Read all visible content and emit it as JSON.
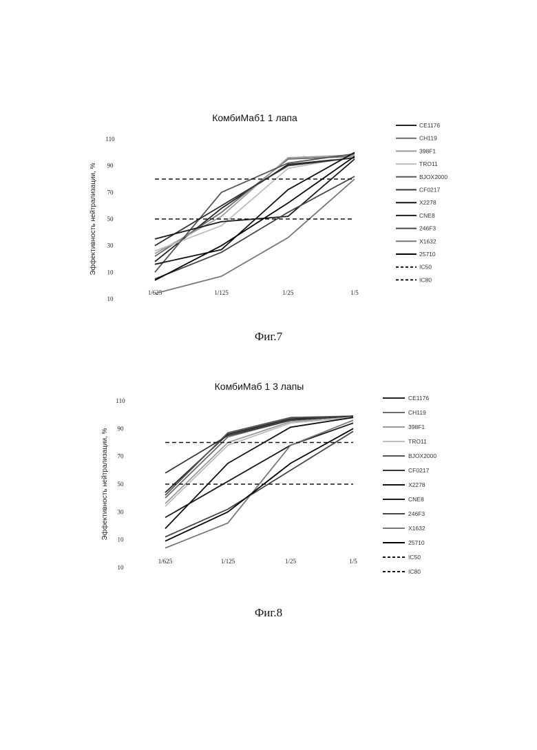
{
  "chart_data": [
    {
      "type": "line",
      "title": "КомбиМаб1 1 лапа",
      "xlabel": "",
      "ylabel": "Эффективность нейтрализации, %",
      "categories": [
        "1/625",
        "1/125",
        "1/25",
        "1/5"
      ],
      "y_tick_labels": [
        "10",
        "10",
        "30",
        "50",
        "70",
        "90",
        "110"
      ],
      "ylim": [
        -10,
        110
      ],
      "grid": false,
      "legend_position": "right",
      "series": [
        {
          "name": "CE1176",
          "values": [
            18,
            58,
            91,
            96
          ],
          "color": "#222222",
          "dashed": false
        },
        {
          "name": "CH119",
          "values": [
            22,
            55,
            95,
            97
          ],
          "color": "#6a6a6a",
          "dashed": false
        },
        {
          "name": "398F1",
          "values": [
            24,
            52,
            96,
            98
          ],
          "color": "#9a9a9a",
          "dashed": false
        },
        {
          "name": "TRO11",
          "values": [
            26,
            45,
            88,
            97
          ],
          "color": "#bdbdbd",
          "dashed": false
        },
        {
          "name": "BJOX2000",
          "values": [
            10,
            70,
            92,
            99
          ],
          "color": "#555555",
          "dashed": false
        },
        {
          "name": "CF0217",
          "values": [
            30,
            60,
            90,
            96
          ],
          "color": "#333333",
          "dashed": false
        },
        {
          "name": "X2278",
          "values": [
            16,
            27,
            72,
            100
          ],
          "color": "#111111",
          "dashed": false
        },
        {
          "name": "CNE8",
          "values": [
            35,
            48,
            52,
            95
          ],
          "color": "#1a1a1a",
          "dashed": false
        },
        {
          "name": "246F3",
          "values": [
            5,
            25,
            55,
            82
          ],
          "color": "#444444",
          "dashed": false
        },
        {
          "name": "X1632",
          "values": [
            -6,
            7,
            36,
            80
          ],
          "color": "#777777",
          "dashed": false
        },
        {
          "name": "25710",
          "values": [
            4,
            30,
            62,
            97
          ],
          "color": "#000000",
          "dashed": false
        },
        {
          "name": "IC50",
          "values": [
            50,
            50,
            50,
            50
          ],
          "color": "#111111",
          "dashed": true
        },
        {
          "name": "IC80",
          "values": [
            80,
            80,
            80,
            80
          ],
          "color": "#111111",
          "dashed": true
        }
      ]
    },
    {
      "type": "line",
      "title": "КомбиМаб 1 3 лапы",
      "xlabel": "",
      "ylabel": "Эффективность нейтрализации, %",
      "categories": [
        "1/625",
        "1/125",
        "1/25",
        "1/5"
      ],
      "y_tick_labels": [
        "10",
        "10",
        "30",
        "50",
        "70",
        "90",
        "110"
      ],
      "ylim": [
        -10,
        110
      ],
      "grid": false,
      "legend_position": "right",
      "series": [
        {
          "name": "CE1176",
          "values": [
            44,
            86,
            97,
            99
          ],
          "color": "#222222",
          "dashed": false
        },
        {
          "name": "CH119",
          "values": [
            40,
            84,
            96,
            99
          ],
          "color": "#6a6a6a",
          "dashed": false
        },
        {
          "name": "398F1",
          "values": [
            36,
            80,
            95,
            98
          ],
          "color": "#9a9a9a",
          "dashed": false
        },
        {
          "name": "TRO11",
          "values": [
            34,
            78,
            94,
            98
          ],
          "color": "#bdbdbd",
          "dashed": false
        },
        {
          "name": "BJOX2000",
          "values": [
            42,
            87,
            98,
            99
          ],
          "color": "#555555",
          "dashed": false
        },
        {
          "name": "CF0217",
          "values": [
            58,
            85,
            96,
            99
          ],
          "color": "#333333",
          "dashed": false
        },
        {
          "name": "X2278",
          "values": [
            18,
            65,
            91,
            98
          ],
          "color": "#111111",
          "dashed": false
        },
        {
          "name": "CNE8",
          "values": [
            26,
            52,
            78,
            94
          ],
          "color": "#1a1a1a",
          "dashed": false
        },
        {
          "name": "246F3",
          "values": [
            12,
            32,
            60,
            88
          ],
          "color": "#444444",
          "dashed": false
        },
        {
          "name": "X1632",
          "values": [
            4,
            22,
            78,
            96
          ],
          "color": "#777777",
          "dashed": false
        },
        {
          "name": "25710",
          "values": [
            9,
            30,
            65,
            90
          ],
          "color": "#000000",
          "dashed": false
        },
        {
          "name": "IC50",
          "values": [
            50,
            50,
            50,
            50
          ],
          "color": "#111111",
          "dashed": true
        },
        {
          "name": "IC80",
          "values": [
            80,
            80,
            80,
            80
          ],
          "color": "#111111",
          "dashed": true
        }
      ]
    }
  ],
  "captions": [
    "Фиг.7",
    "Фиг.8"
  ]
}
